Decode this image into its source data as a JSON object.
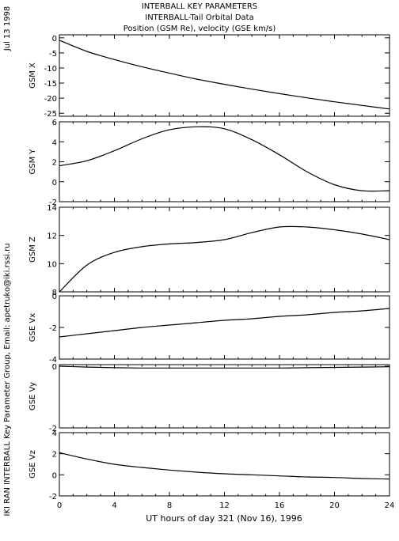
{
  "header": {
    "date": "Jul 13 1998",
    "title_lines": [
      "INTERBALL KEY PARAMETERS",
      "INTERBALL-Tail Orbital Data",
      "Position (GSM Re), velocity (GSE km/s)"
    ],
    "side_credit": "IKI RAN INTERBALL Key Parameter Group, Email: apetruko@iki.rssi.ru"
  },
  "chart_data": {
    "type": "line",
    "xlabel": "UT hours of day 321 (Nov 16), 1996",
    "xlim": [
      0,
      24
    ],
    "x_ticks": [
      "0",
      "4",
      "8",
      "12",
      "16",
      "20",
      "24"
    ],
    "x": [
      0,
      2,
      4,
      6,
      8,
      10,
      12,
      14,
      16,
      18,
      20,
      22,
      24
    ],
    "panels": [
      {
        "ylabel": "GSM X",
        "ylim": [
          -26,
          1
        ],
        "y_ticks": [
          "0",
          "-5",
          "-10",
          "-15",
          "-20",
          "-25"
        ],
        "y_tick_values": [
          0,
          -5,
          -10,
          -15,
          -20,
          -25
        ],
        "values": [
          -0.8,
          -4.5,
          -7.2,
          -9.6,
          -11.7,
          -13.7,
          -15.4,
          -17.0,
          -18.5,
          -19.9,
          -21.2,
          -22.4,
          -23.6
        ]
      },
      {
        "ylabel": "GSM Y",
        "ylim": [
          -2,
          6
        ],
        "y_ticks": [
          "6",
          "4",
          "2",
          "0",
          "-2"
        ],
        "y_tick_values": [
          6,
          4,
          2,
          0,
          -2
        ],
        "values": [
          1.6,
          2.1,
          3.1,
          4.3,
          5.2,
          5.5,
          5.3,
          4.2,
          2.7,
          1.0,
          -0.3,
          -0.9,
          -0.9
        ]
      },
      {
        "ylabel": "GSM Z",
        "ylim": [
          8,
          14
        ],
        "y_ticks": [
          "14",
          "12",
          "10",
          "8"
        ],
        "y_tick_values": [
          14,
          12,
          10,
          8
        ],
        "values": [
          8.0,
          9.9,
          10.8,
          11.2,
          11.4,
          11.5,
          11.7,
          12.2,
          12.6,
          12.6,
          12.4,
          12.1,
          11.7
        ]
      },
      {
        "ylabel": "GSE Vx",
        "ylim": [
          -4,
          0
        ],
        "y_ticks": [
          "0",
          "-2",
          "-4"
        ],
        "y_tick_values": [
          0,
          -2,
          -4
        ],
        "values": [
          -2.6,
          -2.4,
          -2.2,
          -2.0,
          -1.85,
          -1.7,
          -1.55,
          -1.45,
          -1.3,
          -1.2,
          -1.05,
          -0.95,
          -0.8
        ]
      },
      {
        "ylabel": "GSE Vy",
        "ylim": [
          -2,
          0.05
        ],
        "y_ticks": [
          "0",
          "-2"
        ],
        "y_tick_values": [
          0,
          -2
        ],
        "values": [
          0.0,
          -0.03,
          -0.05,
          -0.06,
          -0.06,
          -0.06,
          -0.06,
          -0.06,
          -0.06,
          -0.05,
          -0.04,
          -0.03,
          -0.02
        ]
      },
      {
        "ylabel": "GSE Vz",
        "ylim": [
          -2,
          4
        ],
        "y_ticks": [
          "4",
          "2",
          "0",
          "-2"
        ],
        "y_tick_values": [
          4,
          2,
          0,
          -2
        ],
        "values": [
          2.1,
          1.5,
          1.0,
          0.7,
          0.45,
          0.25,
          0.1,
          0.0,
          -0.1,
          -0.2,
          -0.25,
          -0.35,
          -0.4
        ]
      }
    ]
  }
}
